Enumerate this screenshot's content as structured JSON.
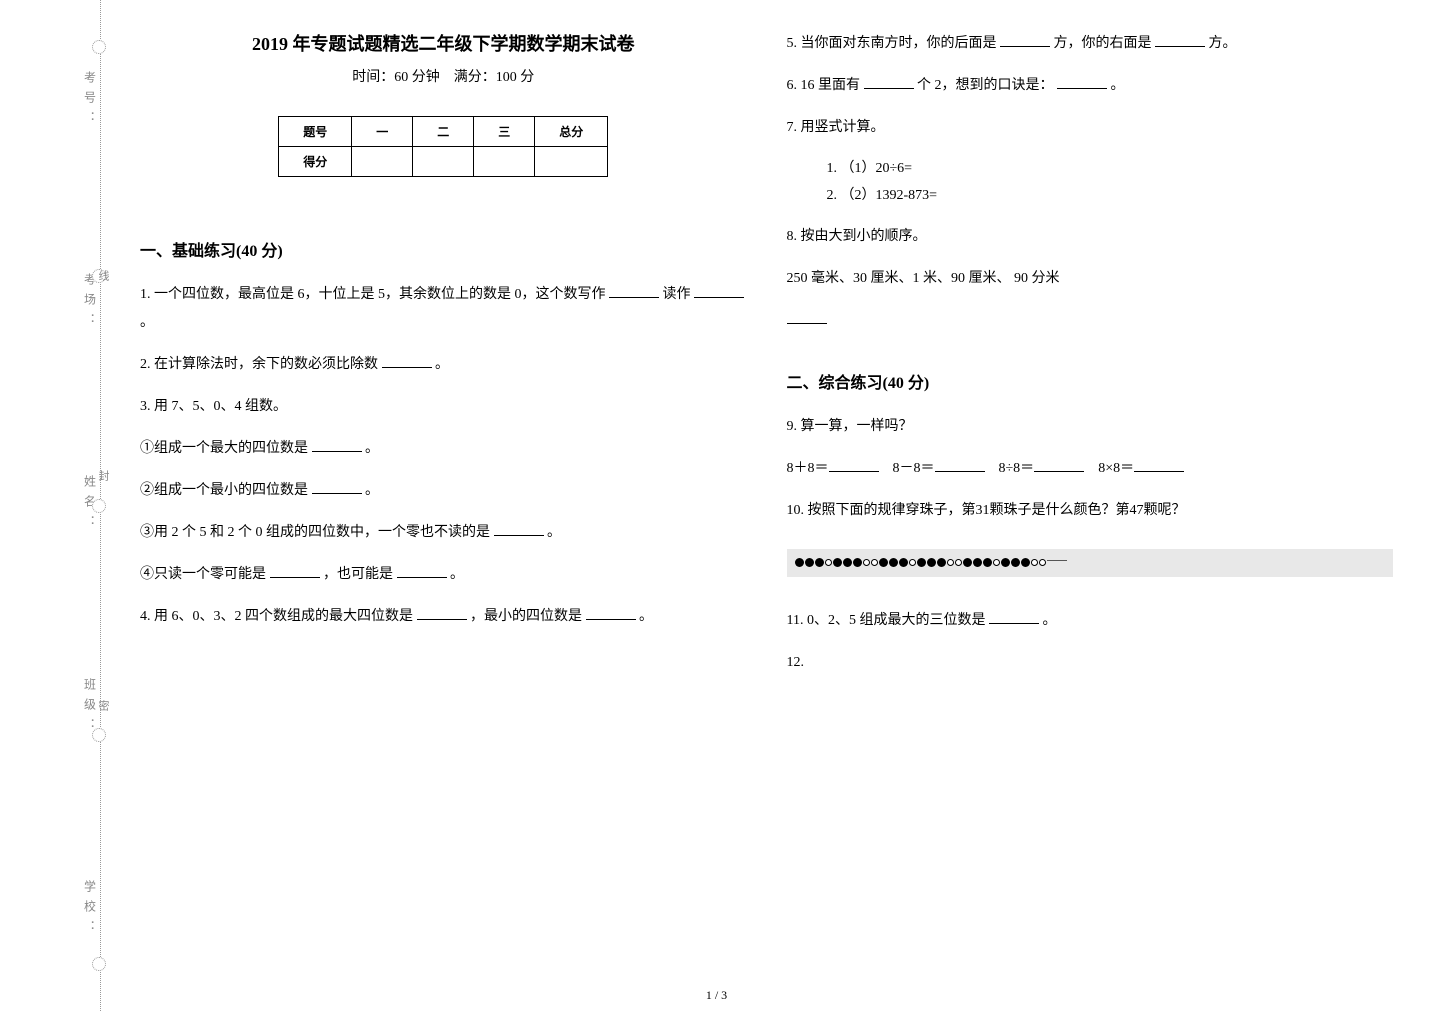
{
  "binding": {
    "labels": [
      "学校：",
      "班级：",
      "姓名：",
      "考场：",
      "考号："
    ],
    "seams": [
      "密",
      "封",
      "线"
    ]
  },
  "header": {
    "title": "2019 年专题试题精选二年级下学期数学期末试卷",
    "subtitle": "时间：60 分钟　满分：100 分"
  },
  "score_table": {
    "headers": [
      "题号",
      "一",
      "二",
      "三",
      "总分"
    ],
    "row_label": "得分"
  },
  "section1": {
    "header": "一、基础练习(40 分)",
    "q1": {
      "pre": "1. 一个四位数，最高位是 6，十位上是 5，其余数位上的数是 0，这个数写作",
      "mid": "读作",
      "end": "。"
    },
    "q2": {
      "pre": "2. 在计算除法时，余下的数必须比除数",
      "end": "。"
    },
    "q3": {
      "intro": "3. 用 7、5、0、4 组数。",
      "i1": {
        "pre": "①组成一个最大的四位数是",
        "end": "。"
      },
      "i2": {
        "pre": "②组成一个最小的四位数是",
        "end": "。"
      },
      "i3": {
        "pre": "③用 2 个 5 和 2 个 0 组成的四位数中，一个零也不读的是",
        "end": "。"
      },
      "i4": {
        "pre": "④只读一个零可能是",
        "mid": "，也可能是",
        "end": "。"
      }
    },
    "q4": {
      "pre": "4. 用 6、0、3、2 四个数组成的最大四位数是",
      "mid": "，最小的四位数是",
      "end": "。"
    },
    "q5": {
      "pre": "5. 当你面对东南方时，你的后面是",
      "mid": "方，你的右面是",
      "end": "方。"
    },
    "q6": {
      "pre": "6. 16 里面有",
      "mid": "个 2，想到的口诀是：",
      "end": "。"
    },
    "q7": {
      "intro": "7. 用竖式计算。",
      "a": "（1）20÷6=",
      "b": "（2）1392-873="
    },
    "q8": {
      "intro": "8. 按由大到小的顺序。",
      "text": "250 毫米、30 厘米、1 米、90 厘米、 90 分米"
    }
  },
  "section2": {
    "header": "二、综合练习(40 分)",
    "q9": {
      "intro": "9. 算一算，一样吗？",
      "a": "8＋8＝",
      "b": "8－8＝",
      "c": "8÷8＝",
      "d": "8×8＝"
    },
    "q10": {
      "text": "10. 按照下面的规律穿珠子，第31颗珠子是什么颜色？第47颗呢？",
      "pattern": "bbbwbbbwwbbbwbbbwwbbbwbbbww",
      "colors": {
        "b": "#000000",
        "w": "#ffffff"
      }
    },
    "q11": {
      "pre": "11. 0、2、5 组成最大的三位数是",
      "end": "。"
    },
    "q12": "12."
  },
  "page_num": "1 / 3"
}
